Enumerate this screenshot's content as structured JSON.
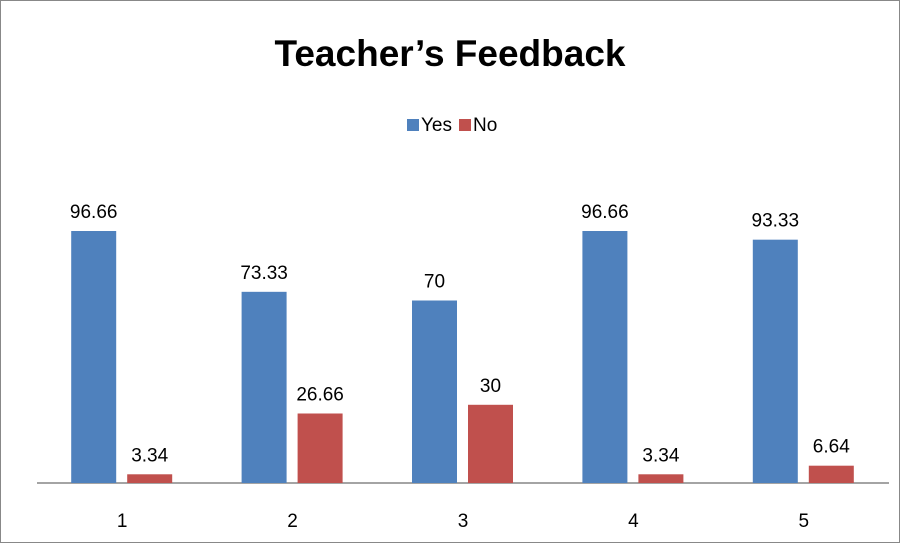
{
  "chart_data": {
    "type": "bar",
    "title": "Teacher’s Feedback",
    "categories": [
      "1",
      "2",
      "3",
      "4",
      "5"
    ],
    "series": [
      {
        "name": "Yes",
        "color": "#4f81bd",
        "values": [
          96.66,
          73.33,
          70,
          96.66,
          93.33
        ]
      },
      {
        "name": "No",
        "color": "#c0504d",
        "values": [
          3.34,
          26.66,
          30,
          3.34,
          6.64
        ]
      }
    ],
    "legend": "top"
  }
}
